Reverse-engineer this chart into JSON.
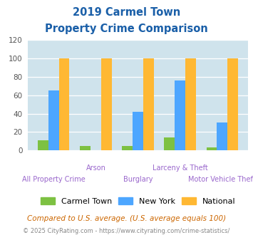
{
  "title_line1": "2019 Carmel Town",
  "title_line2": "Property Crime Comparison",
  "categories": [
    "All Property Crime",
    "Arson",
    "Burglary",
    "Larceny & Theft",
    "Motor Vehicle Theft"
  ],
  "carmel_town": [
    11,
    5,
    5,
    14,
    3
  ],
  "new_york": [
    65,
    0,
    42,
    76,
    30
  ],
  "national": [
    100,
    100,
    100,
    100,
    100
  ],
  "color_carmel": "#7dc142",
  "color_newyork": "#4da6ff",
  "color_national": "#ffb833",
  "ylim": [
    0,
    120
  ],
  "yticks": [
    0,
    20,
    40,
    60,
    80,
    100,
    120
  ],
  "bg_color": "#cfe3ec",
  "title_color": "#1a5fa8",
  "xlabel_color_top": "#9966cc",
  "xlabel_color_bot": "#9966cc",
  "legend_labels": [
    "Carmel Town",
    "New York",
    "National"
  ],
  "footer_text1": "Compared to U.S. average. (U.S. average equals 100)",
  "footer_text2": "© 2025 CityRating.com - https://www.cityrating.com/crime-statistics/",
  "footer_color1": "#cc6600",
  "footer_color2": "#888888"
}
